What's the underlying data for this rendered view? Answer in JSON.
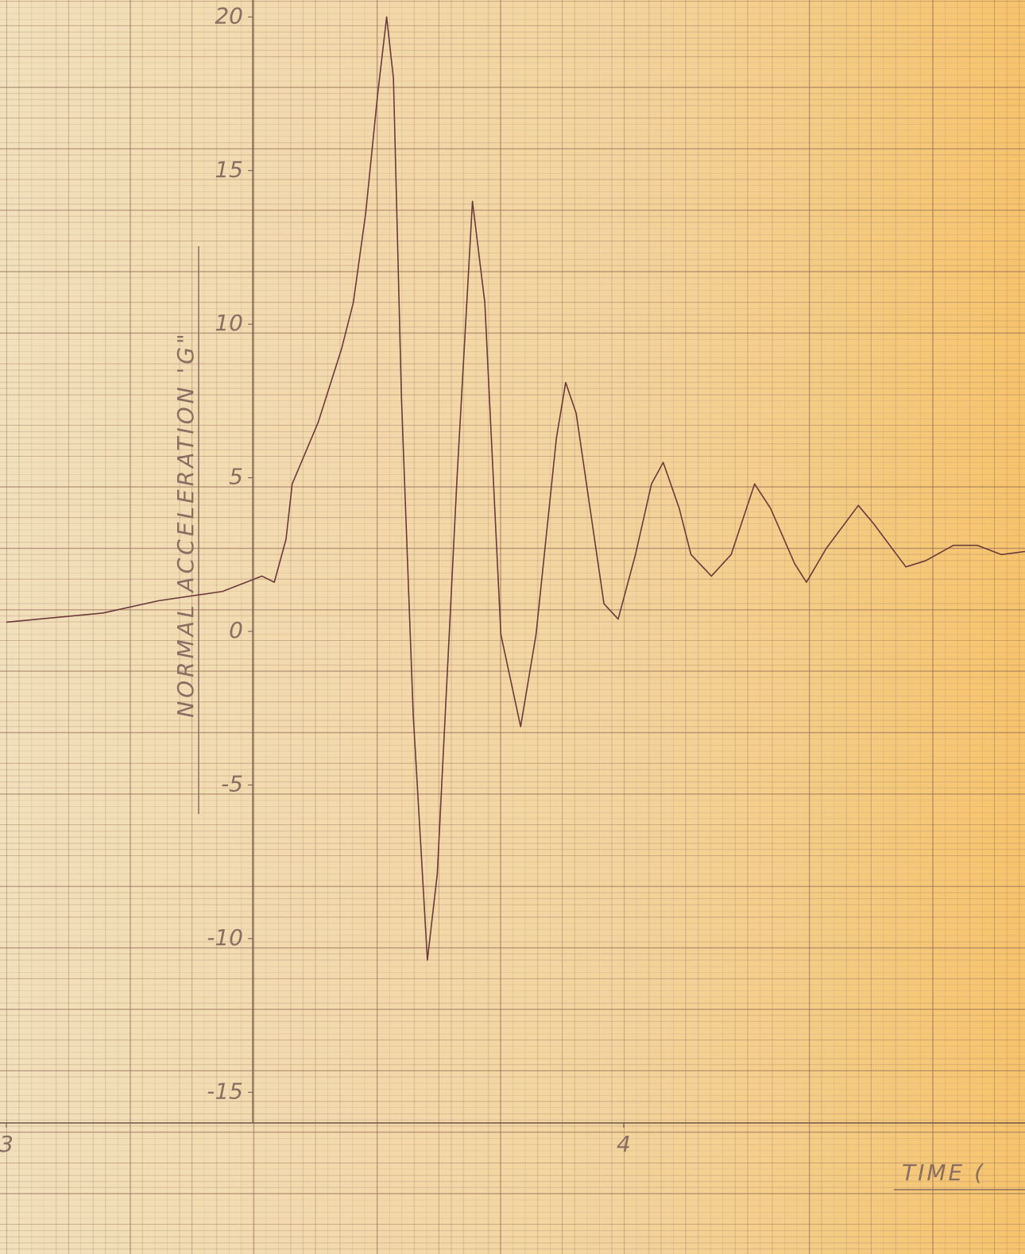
{
  "chart_data": {
    "type": "line",
    "y_label": "NORMAL   ACCELERATION  'G\"",
    "x_label": "TIME (",
    "x": [
      3.0,
      3.157,
      3.247,
      3.35,
      3.414,
      3.434,
      3.453,
      3.463,
      3.505,
      3.543,
      3.562,
      3.582,
      3.601,
      3.616,
      3.627,
      3.64,
      3.659,
      3.682,
      3.698,
      3.73,
      3.755,
      3.775,
      3.801,
      3.833,
      3.858,
      3.891,
      3.906,
      3.923,
      3.968,
      3.991,
      4.019,
      4.045,
      4.064,
      4.09,
      4.109,
      4.142,
      4.174,
      4.212,
      4.238,
      4.277,
      4.296,
      4.328,
      4.38,
      4.405,
      4.457,
      4.489,
      4.534,
      4.573,
      4.612,
      4.65
    ],
    "values": [
      0.3,
      0.6,
      1.0,
      1.3,
      1.8,
      1.6,
      3.0,
      4.8,
      6.8,
      9.2,
      10.7,
      13.6,
      17.4,
      20.0,
      18.0,
      7.6,
      -2.7,
      -10.7,
      -7.9,
      5.0,
      14.0,
      10.7,
      -0.1,
      -3.1,
      -0.1,
      6.3,
      8.1,
      7.1,
      0.9,
      0.4,
      2.5,
      4.8,
      5.5,
      4.0,
      2.5,
      1.8,
      2.5,
      4.8,
      4.0,
      2.2,
      1.6,
      2.7,
      4.1,
      3.5,
      2.1,
      2.3,
      2.8,
      2.8,
      2.5,
      2.6
    ],
    "color": "#6b3a3a",
    "xlim": [
      3,
      4.65
    ],
    "xticks": [
      3,
      4
    ],
    "ylim": [
      -16,
      20.5
    ],
    "yticks": [
      -15,
      -10,
      -5,
      0,
      5,
      10,
      15,
      20
    ]
  }
}
